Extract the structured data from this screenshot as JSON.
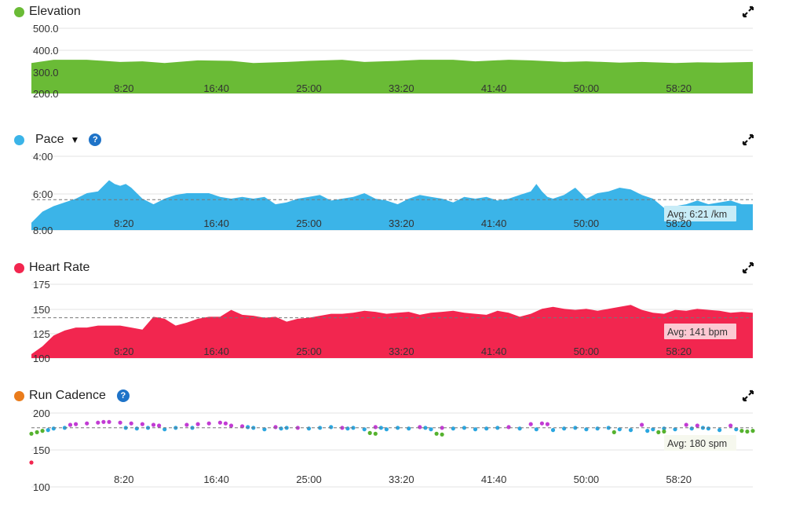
{
  "colors": {
    "elevation": "#6abb36",
    "pace": "#3bb4e8",
    "heart_rate": "#f2264f",
    "cadence": "#ea7c1c",
    "cad_purple": "#c23bd4",
    "cad_blue": "#2aa6e0",
    "cad_green": "#55b22e"
  },
  "x_ticks": [
    "8:20",
    "16:40",
    "25:00",
    "33:20",
    "41:40",
    "50:00",
    "58:20"
  ],
  "icons": {
    "expand": "expand-icon",
    "help": "help-icon",
    "caret": "caret-down-icon"
  },
  "panels": [
    {
      "key": "elevation",
      "title": "Elevation",
      "has_help": false,
      "has_caret": false,
      "y_ticks": [
        "500.0",
        "400.0",
        "300.0",
        "200.0"
      ],
      "avg_label": ""
    },
    {
      "key": "pace",
      "title": "Pace",
      "has_help": true,
      "has_caret": true,
      "caret_glyph": "▼",
      "y_ticks": [
        "4:00",
        "6:00",
        "8:00"
      ],
      "avg_label": "Avg: 6:21 /km"
    },
    {
      "key": "heart_rate",
      "title": "Heart Rate",
      "has_help": false,
      "has_caret": false,
      "y_ticks": [
        "175",
        "150",
        "125",
        "100"
      ],
      "avg_label": "Avg: 141 bpm"
    },
    {
      "key": "cadence",
      "title": "Run Cadence",
      "has_help": true,
      "has_caret": false,
      "y_ticks": [
        "200",
        "150",
        "100"
      ],
      "avg_label": "Avg: 180 spm"
    }
  ],
  "help_glyph": "?",
  "chart_data": [
    {
      "type": "area",
      "title": "Elevation",
      "x_unit": "minutes",
      "xlim": [
        0,
        65
      ],
      "ylim": [
        200,
        500
      ],
      "x": [
        0,
        2,
        5,
        8,
        10,
        12,
        15,
        18,
        20,
        23,
        25,
        28,
        30,
        33,
        35,
        38,
        40,
        43,
        45,
        48,
        50,
        53,
        55,
        58,
        60,
        62,
        65
      ],
      "y": [
        340,
        355,
        355,
        345,
        348,
        340,
        352,
        350,
        340,
        345,
        350,
        355,
        345,
        350,
        355,
        355,
        348,
        355,
        352,
        345,
        348,
        342,
        345,
        340,
        343,
        342,
        345
      ]
    },
    {
      "type": "area",
      "title": "Pace",
      "x_unit": "minutes",
      "xlim": [
        0,
        65
      ],
      "ylim_min_per_km": [
        4,
        8
      ],
      "inverted": true,
      "average_min_per_km": 6.35,
      "x": [
        0,
        1,
        2,
        3,
        4,
        5,
        6,
        7,
        7.5,
        8,
        8.5,
        9,
        10,
        11,
        12,
        13,
        14,
        15,
        16,
        17,
        18,
        19,
        20,
        21,
        22,
        23,
        24,
        25,
        26,
        27,
        28,
        29,
        30,
        31,
        32,
        33,
        34,
        35,
        36,
        37,
        38,
        39,
        40,
        41,
        42,
        43,
        44,
        45,
        45.5,
        46,
        46.5,
        47,
        48,
        49,
        49.5,
        50,
        51,
        52,
        53,
        54,
        55,
        56,
        57,
        58,
        59,
        60,
        61,
        62,
        63,
        64,
        65
      ],
      "y": [
        7.6,
        7.0,
        6.7,
        6.5,
        6.3,
        6.0,
        5.9,
        5.3,
        5.5,
        5.6,
        5.5,
        5.7,
        6.3,
        6.6,
        6.3,
        6.1,
        6.0,
        6.0,
        6.0,
        6.2,
        6.3,
        6.2,
        6.3,
        6.2,
        6.6,
        6.5,
        6.3,
        6.2,
        6.1,
        6.4,
        6.3,
        6.2,
        6.0,
        6.3,
        6.4,
        6.6,
        6.3,
        6.1,
        6.2,
        6.3,
        6.5,
        6.2,
        6.3,
        6.2,
        6.4,
        6.3,
        6.1,
        5.9,
        5.5,
        5.9,
        6.2,
        6.3,
        6.1,
        5.7,
        6.0,
        6.3,
        6.0,
        5.9,
        5.7,
        5.8,
        6.1,
        6.3,
        6.8,
        6.7,
        6.6,
        6.4,
        6.6,
        6.5,
        6.4,
        6.6,
        6.6
      ]
    },
    {
      "type": "area",
      "title": "Heart Rate",
      "x_unit": "minutes",
      "xlim": [
        0,
        65
      ],
      "ylim": [
        100,
        175
      ],
      "average": 141,
      "x": [
        0,
        1,
        2,
        3,
        4,
        5,
        6,
        7,
        8,
        9,
        10,
        11,
        12,
        13,
        14,
        15,
        16,
        17,
        18,
        19,
        20,
        21,
        22,
        23,
        24,
        25,
        26,
        27,
        28,
        29,
        30,
        31,
        32,
        33,
        34,
        35,
        36,
        37,
        38,
        39,
        40,
        41,
        42,
        43,
        44,
        45,
        46,
        47,
        48,
        49,
        50,
        51,
        52,
        53,
        54,
        55,
        56,
        57,
        58,
        59,
        60,
        61,
        62,
        63,
        64,
        65
      ],
      "y": [
        104,
        112,
        123,
        128,
        131,
        131,
        133,
        133,
        133,
        131,
        129,
        142,
        140,
        133,
        136,
        140,
        142,
        142,
        149,
        144,
        143,
        141,
        142,
        137,
        140,
        141,
        143,
        145,
        145,
        146,
        148,
        147,
        145,
        146,
        147,
        144,
        146,
        147,
        148,
        146,
        145,
        144,
        148,
        146,
        142,
        145,
        150,
        152,
        150,
        149,
        150,
        148,
        150,
        152,
        154,
        149,
        146,
        145,
        149,
        148,
        150,
        149,
        148,
        146,
        147,
        146
      ]
    },
    {
      "type": "scatter",
      "title": "Run Cadence",
      "x_unit": "minutes",
      "xlim": [
        0,
        65
      ],
      "ylim": [
        100,
        200
      ],
      "average": 180,
      "series": [
        {
          "color": "#c23bd4",
          "points": [
            [
              3.5,
              184
            ],
            [
              4,
              185
            ],
            [
              5,
              186
            ],
            [
              6,
              187
            ],
            [
              6.5,
              188
            ],
            [
              7,
              188
            ],
            [
              8,
              187
            ],
            [
              9,
              186
            ],
            [
              10,
              185
            ],
            [
              11,
              184
            ],
            [
              11.5,
              183
            ],
            [
              14,
              184
            ],
            [
              15,
              185
            ],
            [
              16,
              186
            ],
            [
              17,
              187
            ],
            [
              17.5,
              186
            ],
            [
              18,
              183
            ],
            [
              19,
              182
            ],
            [
              22,
              181
            ],
            [
              24,
              180
            ],
            [
              28,
              180
            ],
            [
              31,
              181
            ],
            [
              35,
              181
            ],
            [
              37,
              180
            ],
            [
              43,
              181
            ],
            [
              45,
              185
            ],
            [
              46,
              186
            ],
            [
              46.5,
              185
            ],
            [
              55,
              184
            ],
            [
              59,
              184
            ],
            [
              60,
              183
            ],
            [
              63,
              183
            ]
          ]
        },
        {
          "color": "#2aa6e0",
          "points": [
            [
              1.5,
              177
            ],
            [
              2,
              179
            ],
            [
              3,
              180
            ],
            [
              8.5,
              180
            ],
            [
              9.5,
              179
            ],
            [
              10.5,
              180
            ],
            [
              12,
              178
            ],
            [
              13,
              180
            ],
            [
              14.5,
              180
            ],
            [
              19.5,
              181
            ],
            [
              20,
              180
            ],
            [
              21,
              178
            ],
            [
              22.5,
              179
            ],
            [
              23,
              180
            ],
            [
              25,
              179
            ],
            [
              26,
              180
            ],
            [
              27,
              181
            ],
            [
              28.5,
              179
            ],
            [
              29,
              180
            ],
            [
              30,
              178
            ],
            [
              31.5,
              180
            ],
            [
              32,
              178
            ],
            [
              33,
              180
            ],
            [
              34,
              179
            ],
            [
              35.5,
              180
            ],
            [
              36,
              178
            ],
            [
              38,
              179
            ],
            [
              39,
              180
            ],
            [
              40,
              178
            ],
            [
              41,
              179
            ],
            [
              42,
              180
            ],
            [
              44,
              179
            ],
            [
              45.5,
              178
            ],
            [
              47,
              177
            ],
            [
              48,
              179
            ],
            [
              49,
              180
            ],
            [
              50,
              178
            ],
            [
              51,
              179
            ],
            [
              52,
              180
            ],
            [
              53,
              178
            ],
            [
              54,
              177
            ],
            [
              55.5,
              176
            ],
            [
              56,
              178
            ],
            [
              57,
              179
            ],
            [
              58,
              178
            ],
            [
              59.5,
              179
            ],
            [
              60.5,
              180
            ],
            [
              61,
              179
            ],
            [
              62,
              177
            ],
            [
              63.5,
              178
            ]
          ]
        },
        {
          "color": "#55b22e",
          "points": [
            [
              0,
              172
            ],
            [
              0.5,
              174
            ],
            [
              1,
              176
            ],
            [
              30.5,
              173
            ],
            [
              31,
              172
            ],
            [
              36.5,
              172
            ],
            [
              37,
              171
            ],
            [
              52.5,
              174
            ],
            [
              56.5,
              174
            ],
            [
              57,
              175
            ],
            [
              64,
              176
            ],
            [
              64.5,
              175
            ],
            [
              65,
              176
            ]
          ]
        },
        {
          "color": "#f2264f",
          "points": [
            [
              0,
              133
            ]
          ]
        }
      ]
    }
  ]
}
